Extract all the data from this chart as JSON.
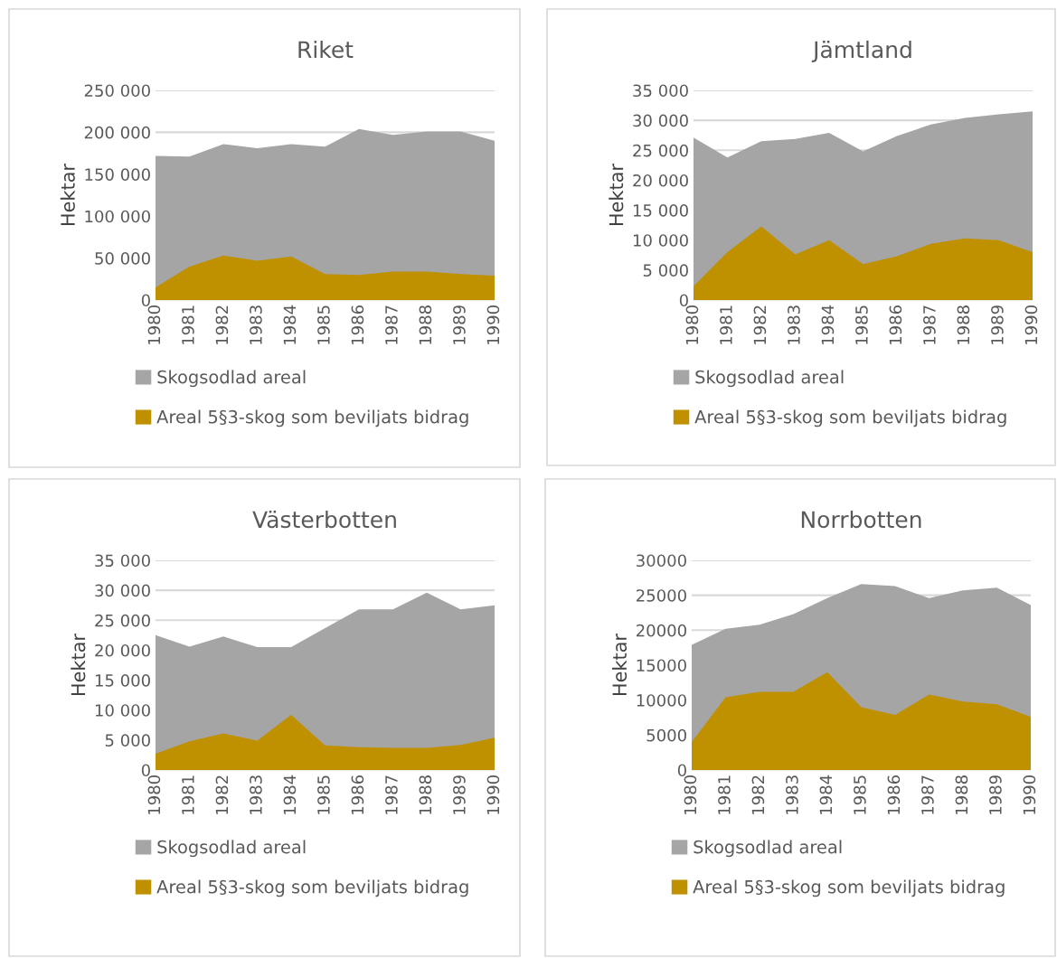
{
  "chart_data": [
    {
      "type": "area",
      "title": "Riket",
      "ylabel": "Hektar",
      "categories": [
        "1980",
        "1981",
        "1982",
        "1983",
        "1984",
        "1985",
        "1986",
        "1987",
        "1988",
        "1989",
        "1990"
      ],
      "series": [
        {
          "name": "Skogsodlad areal",
          "color": "#a5a5a5",
          "values": [
            172000,
            171000,
            186000,
            181000,
            186000,
            183000,
            204000,
            197000,
            201000,
            201000,
            190000
          ]
        },
        {
          "name": "Areal 5§3-skog som beviljats bidrag",
          "color": "#bf9000",
          "values": [
            15000,
            40000,
            53000,
            47000,
            52000,
            31000,
            30000,
            34000,
            34000,
            31000,
            29000
          ]
        }
      ],
      "ylim": [
        0,
        250000
      ],
      "yticks": [
        0,
        {
          "value": 50000,
          "label": "50 000"
        },
        {
          "value": 100000,
          "label": "100 000"
        },
        {
          "value": 150000,
          "label": "150 000"
        },
        {
          "value": 200000,
          "label": "200 000"
        },
        {
          "value": 250000,
          "label": "250 000"
        }
      ],
      "grid": "y",
      "legend": "bottom"
    },
    {
      "type": "area",
      "title": "Jämtland",
      "ylabel": "Hektar",
      "categories": [
        "1980",
        "1981",
        "1982",
        "1983",
        "1984",
        "1985",
        "1986",
        "1987",
        "1988",
        "1989",
        "1990"
      ],
      "series": [
        {
          "name": "Skogsodlad areal",
          "color": "#a5a5a5",
          "values": [
            27100,
            23800,
            26500,
            26900,
            27900,
            24800,
            27400,
            29300,
            30400,
            31000,
            31500
          ]
        },
        {
          "name": "Areal 5§3-skog som beviljats bidrag",
          "color": "#bf9000",
          "values": [
            2300,
            8000,
            12300,
            7600,
            10000,
            6000,
            7300,
            9400,
            10300,
            10000,
            8000
          ]
        }
      ],
      "ylim": [
        0,
        35000
      ],
      "yticks": [
        0,
        {
          "value": 5000,
          "label": "5 000"
        },
        {
          "value": 10000,
          "label": "10 000"
        },
        {
          "value": 15000,
          "label": "15 000"
        },
        {
          "value": 20000,
          "label": "20 000"
        },
        {
          "value": 25000,
          "label": "25 000"
        },
        {
          "value": 30000,
          "label": "30 000"
        },
        {
          "value": 35000,
          "label": "35 000"
        }
      ],
      "grid": "y",
      "legend": "bottom"
    },
    {
      "type": "area",
      "title": "Västerbotten",
      "ylabel": "Hektar",
      "categories": [
        "1980",
        "1981",
        "1982",
        "1983",
        "1984",
        "1985",
        "1986",
        "1987",
        "1988",
        "1989",
        "1990"
      ],
      "series": [
        {
          "name": "Skogsodlad areal",
          "color": "#a5a5a5",
          "values": [
            22500,
            20600,
            22300,
            20500,
            20500,
            23700,
            26800,
            26800,
            29600,
            26800,
            27500
          ]
        },
        {
          "name": "Areal 5§3-skog som beviljats bidrag",
          "color": "#bf9000",
          "values": [
            2700,
            4800,
            6100,
            4900,
            9200,
            4100,
            3800,
            3700,
            3700,
            4200,
            5400
          ]
        }
      ],
      "ylim": [
        0,
        35000
      ],
      "yticks": [
        0,
        {
          "value": 5000,
          "label": "5 000"
        },
        {
          "value": 10000,
          "label": "10 000"
        },
        {
          "value": 15000,
          "label": "15 000"
        },
        {
          "value": 20000,
          "label": "20 000"
        },
        {
          "value": 25000,
          "label": "25 000"
        },
        {
          "value": 30000,
          "label": "30 000"
        },
        {
          "value": 35000,
          "label": "35 000"
        }
      ],
      "grid": "y",
      "legend": "bottom"
    },
    {
      "type": "area",
      "title": "Norrbotten",
      "ylabel": "Hektar",
      "categories": [
        "1980",
        "1981",
        "1982",
        "1983",
        "1984",
        "1985",
        "1986",
        "1987",
        "1988",
        "1989",
        "1990"
      ],
      "series": [
        {
          "name": "Skogsodlad areal",
          "color": "#a5a5a5",
          "values": [
            17900,
            20200,
            20800,
            22300,
            24600,
            26600,
            26300,
            24600,
            25700,
            26100,
            23600
          ]
        },
        {
          "name": "Areal 5§3-skog som beviljats bidrag",
          "color": "#bf9000",
          "values": [
            4000,
            10400,
            11200,
            11200,
            14000,
            9000,
            7900,
            10800,
            9800,
            9400,
            7600
          ]
        }
      ],
      "ylim": [
        0,
        30000
      ],
      "yticks": [
        0,
        5000,
        10000,
        15000,
        20000,
        25000,
        30000
      ],
      "grid": "y",
      "legend": "bottom"
    }
  ]
}
